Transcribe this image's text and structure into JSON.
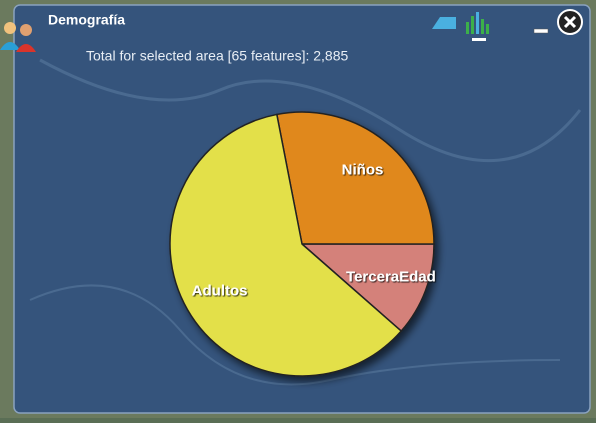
{
  "header": {
    "title": "Demografía",
    "subtitle": "Total for selected area [65 features]: 2,885"
  },
  "chart_data": {
    "type": "pie",
    "categories": [
      "Niños",
      "TerceraEdad",
      "Adultos"
    ],
    "values": [
      810,
      330,
      1745
    ],
    "colors": [
      "#e0881a",
      "#d4817a",
      "#e3e04a"
    ]
  }
}
